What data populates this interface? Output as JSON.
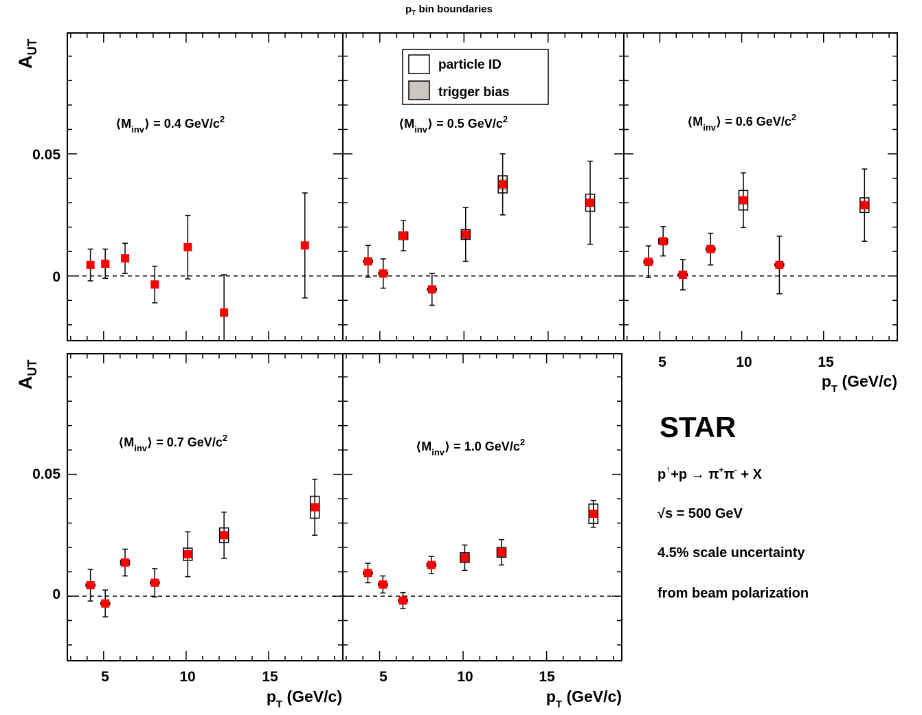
{
  "figure": {
    "top_title": {
      "main": "p",
      "sub": "T",
      "rest": " bin boundaries"
    },
    "experiment": "STAR",
    "reaction": {
      "p": "p",
      "sup": "↑",
      "rest": "+p  →  π",
      "pip": "+",
      "pi2": "π",
      "pim": "-",
      "tail": " + X"
    },
    "energy": {
      "root": "√",
      "rest": "s = 500 GeV"
    },
    "scale_note_1": "4.5% scale uncertainty",
    "scale_note_2": "from beam polarization",
    "ylabel": {
      "main": "A",
      "sub": "UT"
    },
    "xlabel": {
      "main": "p",
      "sub": "T",
      "rest": " (GeV/c)"
    },
    "legend": [
      {
        "label": "particle ID",
        "fill": "#ffffff"
      },
      {
        "label": "trigger bias",
        "fill": "#cdc5bf"
      }
    ],
    "y_ticks": [
      "0.05",
      "0"
    ],
    "x_ticks": [
      "5",
      "10",
      "15"
    ]
  },
  "colors": {
    "marker": "#ff0000",
    "trigger_band": "#cdc5bf",
    "axes": "#000000"
  },
  "chart_data": [
    {
      "type": "scatter",
      "panel": "0.4",
      "label": {
        "pre": "⟨M",
        "sub": "inv",
        "post": "⟩ = 0.4 GeV/c",
        "sup": "2"
      },
      "x": [
        4.2,
        5.1,
        6.3,
        8.1,
        10.1,
        12.3,
        17.2
      ],
      "y": [
        0.0045,
        0.005,
        0.0072,
        -0.0035,
        0.0118,
        -0.015,
        0.0125
      ],
      "stat_err": [
        0.0065,
        0.006,
        0.0062,
        0.0075,
        0.013,
        0.0155,
        0.0215
      ],
      "xlim": [
        2.8,
        19.5
      ],
      "ylim": [
        -0.0265,
        0.0995
      ]
    },
    {
      "type": "scatter",
      "panel": "0.5",
      "label": {
        "pre": "⟨M",
        "sub": "inv",
        "post": "⟩ = 0.5 GeV/c",
        "sup": "2"
      },
      "x": [
        4.3,
        5.2,
        6.4,
        8.1,
        10.1,
        12.3,
        17.5
      ],
      "y": [
        0.006,
        0.001,
        0.0165,
        -0.0055,
        0.017,
        0.0375,
        0.03
      ],
      "stat_err": [
        0.0065,
        0.006,
        0.0062,
        0.0065,
        0.011,
        0.0125,
        0.017
      ],
      "sys_pid": [
        0.0005,
        0.0005,
        0.0015,
        0.0005,
        0.002,
        0.0035,
        0.0035
      ],
      "sys_trig": [
        0.0005,
        0.0005,
        0.002,
        0.0005,
        0.001,
        0.0025,
        0.001
      ],
      "xlim": [
        2.8,
        19.5
      ],
      "ylim": [
        -0.0265,
        0.0995
      ]
    },
    {
      "type": "scatter",
      "panel": "0.6",
      "label": {
        "pre": "⟨M",
        "sub": "inv",
        "post": "⟩ = 0.6 GeV/c",
        "sup": "2"
      },
      "x": [
        4.3,
        5.2,
        6.4,
        8.1,
        10.1,
        12.3,
        17.5
      ],
      "y": [
        0.0058,
        0.0142,
        0.0005,
        0.011,
        0.031,
        0.0045,
        0.029
      ],
      "stat_err": [
        0.0065,
        0.006,
        0.0062,
        0.0065,
        0.0112,
        0.0118,
        0.0148
      ],
      "sys_pid": [
        0.0005,
        0.001,
        0.0005,
        0.0005,
        0.004,
        0.0005,
        0.003
      ],
      "sys_trig": [
        0.0005,
        0.001,
        0.0005,
        0.0005,
        0.001,
        0.0005,
        0.001
      ],
      "xlim": [
        2.8,
        19.5
      ],
      "ylim": [
        -0.0265,
        0.0995
      ]
    },
    {
      "type": "scatter",
      "panel": "0.7",
      "label": {
        "pre": "⟨M",
        "sub": "inv",
        "post": "⟩ = 0.7 GeV/c",
        "sup": "2"
      },
      "x": [
        4.2,
        5.1,
        6.3,
        8.1,
        10.1,
        12.3,
        17.8
      ],
      "y": [
        0.0045,
        -0.003,
        0.0138,
        0.0055,
        0.0172,
        0.025,
        0.0365
      ],
      "stat_err": [
        0.0065,
        0.0055,
        0.0055,
        0.0058,
        0.0092,
        0.0095,
        0.0115
      ],
      "sys_pid": [
        0.0005,
        0.0005,
        0.001,
        0.0005,
        0.0025,
        0.003,
        0.0045
      ],
      "sys_trig": [
        0.0005,
        0.0005,
        0.001,
        0.0005,
        0.001,
        0.0015,
        0.001
      ],
      "xlim": [
        2.8,
        19.5
      ],
      "ylim": [
        -0.0265,
        0.0995
      ]
    },
    {
      "type": "scatter",
      "panel": "1.0",
      "label": {
        "pre": "⟨M",
        "sub": "inv",
        "post": "⟩ = 1.0 GeV/c",
        "sup": "2"
      },
      "x": [
        4.3,
        5.2,
        6.4,
        8.1,
        10.1,
        12.3,
        17.8
      ],
      "y": [
        0.0095,
        0.0048,
        -0.0018,
        0.0128,
        0.0158,
        0.018,
        0.0338
      ],
      "stat_err": [
        0.004,
        0.0035,
        0.0033,
        0.0035,
        0.0052,
        0.0052,
        0.0055
      ],
      "sys_pid": [
        0.0005,
        0.0005,
        0.0005,
        0.0005,
        0.002,
        0.002,
        0.004
      ],
      "sys_trig": [
        0.0005,
        0.0005,
        0.0005,
        0.0005,
        0.001,
        0.001,
        0.001
      ],
      "xlim": [
        2.8,
        19.5
      ],
      "ylim": [
        -0.0265,
        0.0995
      ]
    }
  ]
}
